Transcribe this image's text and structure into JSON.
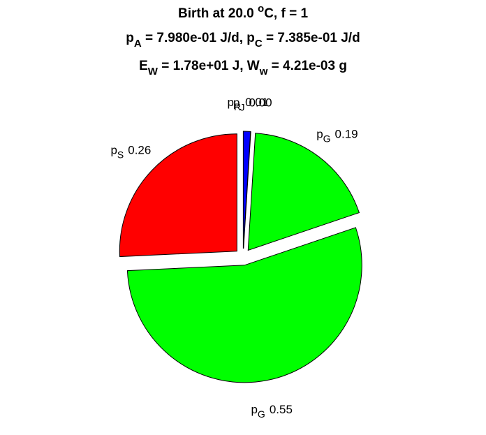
{
  "chart_data": {
    "type": "pie",
    "title": [
      [
        {
          "text": "Birth at 20.0 "
        },
        {
          "text": "o",
          "shift": "sup"
        },
        {
          "text": "C, f = 1"
        }
      ],
      [
        {
          "text": "p"
        },
        {
          "text": "A",
          "shift": "sub"
        },
        {
          "text": " = 7.980e-01 J/d, p"
        },
        {
          "text": "C",
          "shift": "sub"
        },
        {
          "text": " = 7.385e-01 J/d"
        }
      ],
      [
        {
          "text": "E"
        },
        {
          "text": "W",
          "shift": "sub"
        },
        {
          "text": " = 1.78e+01 J, W"
        },
        {
          "text": "w",
          "shift": "sub"
        },
        {
          "text": " = 4.21e-03 g"
        }
      ]
    ],
    "categories": [
      {
        "base": "p",
        "sub": "R"
      },
      {
        "base": "p",
        "sub": "J"
      },
      {
        "base": "p",
        "sub": "G"
      },
      {
        "base": "p",
        "sub": "G"
      },
      {
        "base": "p",
        "sub": "S"
      }
    ],
    "values": [
      0.01,
      0.0,
      0.19,
      0.55,
      0.26
    ],
    "value_labels": [
      "0.01",
      "0.00",
      "0.19",
      "0.55",
      "0.26"
    ],
    "colors": [
      "#0000ff",
      "#ff00ff",
      "#00ff00",
      "#00ff00",
      "#ff0000"
    ]
  }
}
